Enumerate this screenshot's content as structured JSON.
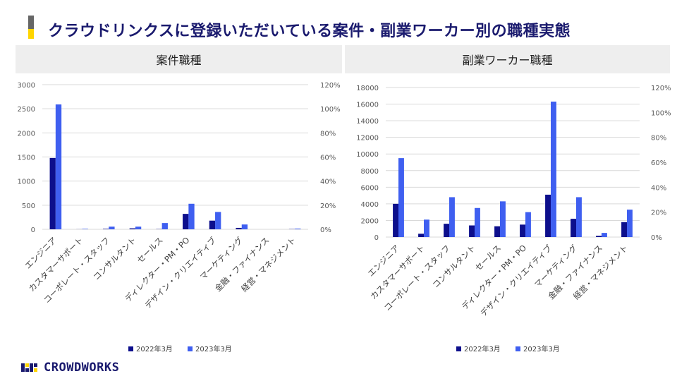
{
  "page": {
    "title": "クラウドリンクスに登録いただいている案件・副業ワーカー別の職種実態",
    "accent_colors": [
      "#666666",
      "#ffd500"
    ]
  },
  "logo": {
    "text": "CROWDWORKS",
    "icon": "crowdworks-logo-icon",
    "color": "#1a1a6e"
  },
  "chart_data": [
    {
      "type": "bar",
      "title": "案件職種",
      "categories": [
        "エンジニア",
        "カスタマーサポート",
        "コーポレート・スタッフ",
        "コンサルタント",
        "セールス",
        "ディレクター・PM・PO",
        "デザイン・クリエイティブ",
        "マーケティング",
        "金融・ファイナンス",
        "経営・マネジメント"
      ],
      "series": [
        {
          "name": "2022年3月",
          "color": "#0d0f8c",
          "values": [
            1480,
            2,
            10,
            20,
            5,
            320,
            180,
            30,
            0,
            5
          ]
        },
        {
          "name": "2023年3月",
          "color": "#3f5ff0",
          "values": [
            2590,
            10,
            55,
            55,
            130,
            530,
            360,
            100,
            0,
            15
          ]
        }
      ],
      "ylim": [
        0,
        3000
      ],
      "yticks": [
        "0",
        "500",
        "1000",
        "1500",
        "2000",
        "2500",
        "3000"
      ],
      "y2ticks": [
        "0%",
        "20%",
        "40%",
        "60%",
        "80%",
        "100%",
        "120%"
      ],
      "grid": true,
      "legend": "bottom"
    },
    {
      "type": "bar",
      "title": "副業ワーカー職種",
      "categories": [
        "エンジニア",
        "カスタマーサポート",
        "コーポレート・スタッフ",
        "コンサルタント",
        "セールス",
        "ディレクター・PM・PO",
        "デザイン・クリエイティブ",
        "マーケティング",
        "金融・ファイナンス",
        "経営・マネジメント"
      ],
      "series": [
        {
          "name": "2022年3月",
          "color": "#0d0f8c",
          "values": [
            4000,
            400,
            1600,
            1400,
            1300,
            1500,
            5100,
            2200,
            150,
            1800
          ]
        },
        {
          "name": "2023年3月",
          "color": "#3f5ff0",
          "values": [
            9500,
            2100,
            4800,
            3500,
            4300,
            3000,
            16300,
            4800,
            500,
            3300
          ]
        }
      ],
      "ylim": [
        0,
        18000
      ],
      "yticks": [
        "0",
        "2000",
        "4000",
        "6000",
        "8000",
        "10000",
        "12000",
        "14000",
        "16000",
        "18000"
      ],
      "y2ticks": [
        "0%",
        "20%",
        "40%",
        "60%",
        "80%",
        "100%",
        "120%"
      ],
      "grid": true,
      "legend": "bottom"
    }
  ]
}
